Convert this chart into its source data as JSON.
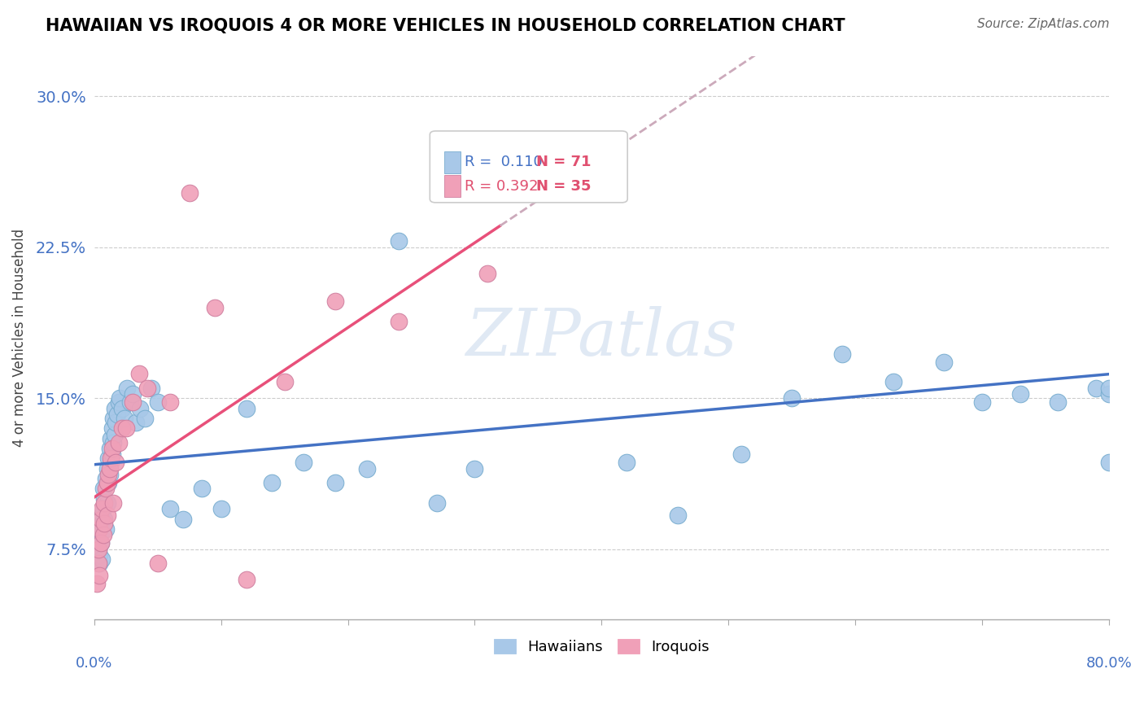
{
  "title": "HAWAIIAN VS IROQUOIS 4 OR MORE VEHICLES IN HOUSEHOLD CORRELATION CHART",
  "source": "Source: ZipAtlas.com",
  "ylabel": "4 or more Vehicles in Household",
  "ytick_labels": [
    "7.5%",
    "15.0%",
    "22.5%",
    "30.0%"
  ],
  "ytick_values": [
    0.075,
    0.15,
    0.225,
    0.3
  ],
  "xlim": [
    0.0,
    0.8
  ],
  "ylim": [
    0.04,
    0.32
  ],
  "color_hawaiian": "#A8C8E8",
  "color_iroquois": "#F0A0B8",
  "color_hawaiian_line": "#4472C4",
  "color_iroquois_line": "#E8507A",
  "watermark_text": "ZIPatlas",
  "hawaiians_x": [
    0.002,
    0.003,
    0.003,
    0.004,
    0.004,
    0.005,
    0.005,
    0.006,
    0.006,
    0.007,
    0.007,
    0.008,
    0.008,
    0.009,
    0.009,
    0.01,
    0.01,
    0.011,
    0.011,
    0.012,
    0.012,
    0.013,
    0.013,
    0.014,
    0.014,
    0.015,
    0.015,
    0.016,
    0.016,
    0.017,
    0.018,
    0.019,
    0.02,
    0.022,
    0.024,
    0.026,
    0.028,
    0.03,
    0.033,
    0.036,
    0.04,
    0.045,
    0.05,
    0.06,
    0.07,
    0.085,
    0.1,
    0.12,
    0.14,
    0.165,
    0.19,
    0.215,
    0.24,
    0.27,
    0.3,
    0.34,
    0.38,
    0.42,
    0.46,
    0.51,
    0.55,
    0.59,
    0.63,
    0.67,
    0.7,
    0.73,
    0.76,
    0.79,
    0.8,
    0.8,
    0.8
  ],
  "hawaiians_y": [
    0.08,
    0.075,
    0.085,
    0.068,
    0.072,
    0.078,
    0.092,
    0.07,
    0.088,
    0.095,
    0.105,
    0.09,
    0.1,
    0.11,
    0.085,
    0.115,
    0.098,
    0.12,
    0.108,
    0.125,
    0.112,
    0.13,
    0.118,
    0.135,
    0.122,
    0.128,
    0.14,
    0.132,
    0.145,
    0.138,
    0.142,
    0.148,
    0.15,
    0.145,
    0.14,
    0.155,
    0.148,
    0.152,
    0.138,
    0.145,
    0.14,
    0.155,
    0.148,
    0.095,
    0.09,
    0.105,
    0.095,
    0.145,
    0.108,
    0.118,
    0.108,
    0.115,
    0.228,
    0.098,
    0.115,
    0.268,
    0.252,
    0.118,
    0.092,
    0.122,
    0.15,
    0.172,
    0.158,
    0.168,
    0.148,
    0.152,
    0.148,
    0.155,
    0.152,
    0.155,
    0.118
  ],
  "iroquois_x": [
    0.002,
    0.003,
    0.003,
    0.004,
    0.004,
    0.005,
    0.005,
    0.006,
    0.007,
    0.008,
    0.008,
    0.009,
    0.01,
    0.01,
    0.011,
    0.012,
    0.013,
    0.014,
    0.015,
    0.017,
    0.019,
    0.022,
    0.025,
    0.03,
    0.035,
    0.042,
    0.05,
    0.06,
    0.075,
    0.095,
    0.12,
    0.15,
    0.19,
    0.24,
    0.31
  ],
  "iroquois_y": [
    0.058,
    0.068,
    0.075,
    0.085,
    0.062,
    0.078,
    0.09,
    0.095,
    0.082,
    0.088,
    0.098,
    0.105,
    0.092,
    0.108,
    0.112,
    0.115,
    0.12,
    0.125,
    0.098,
    0.118,
    0.128,
    0.135,
    0.135,
    0.148,
    0.162,
    0.155,
    0.068,
    0.148,
    0.252,
    0.195,
    0.06,
    0.158,
    0.198,
    0.188,
    0.212
  ],
  "iroquois_trend_xstart": 0.0,
  "iroquois_trend_xend_solid": 0.32,
  "iroquois_trend_xend_dashed": 0.8,
  "hawaiians_trend_xstart": 0.0,
  "hawaiians_trend_xend": 0.8
}
